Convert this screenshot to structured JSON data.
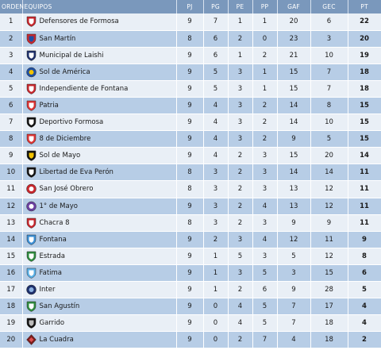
{
  "headers": {
    "ord": "ORDEN",
    "team": "EQUIPOS",
    "pj": "PJ",
    "pg": "PG",
    "pe": "PE",
    "pp": "PP",
    "gaf": "GAF",
    "gec": "GEC",
    "pt": "PT"
  },
  "rows": [
    {
      "pos": "1",
      "team": "Defensores de Formosa",
      "pj": "9",
      "pg": "7",
      "pe": "1",
      "pp": "1",
      "gaf": "20",
      "gec": "6",
      "pt": "22",
      "crest": "shield-red-icon"
    },
    {
      "pos": "2",
      "team": "San Martín",
      "pj": "8",
      "pg": "6",
      "pe": "2",
      "pp": "0",
      "gaf": "23",
      "gec": "3",
      "pt": "20",
      "crest": "shield-redblue-icon"
    },
    {
      "pos": "3",
      "team": "Municipal de Laishi",
      "pj": "9",
      "pg": "6",
      "pe": "1",
      "pp": "2",
      "gaf": "21",
      "gec": "10",
      "pt": "19",
      "crest": "shield-navy-icon"
    },
    {
      "pos": "4",
      "team": "Sol de América",
      "pj": "9",
      "pg": "5",
      "pe": "3",
      "pp": "1",
      "gaf": "15",
      "gec": "7",
      "pt": "18",
      "crest": "circle-blueyellow-icon"
    },
    {
      "pos": "5",
      "team": "Independiente de Fontana",
      "pj": "9",
      "pg": "5",
      "pe": "3",
      "pp": "1",
      "gaf": "15",
      "gec": "7",
      "pt": "18",
      "crest": "shield-red-icon"
    },
    {
      "pos": "6",
      "team": "Patria",
      "pj": "9",
      "pg": "4",
      "pe": "3",
      "pp": "2",
      "gaf": "14",
      "gec": "8",
      "pt": "15",
      "crest": "shield-redwhite-icon"
    },
    {
      "pos": "7",
      "team": "Deportivo Formosa",
      "pj": "9",
      "pg": "4",
      "pe": "3",
      "pp": "2",
      "gaf": "14",
      "gec": "10",
      "pt": "15",
      "crest": "shield-blackwhite-icon"
    },
    {
      "pos": "8",
      "team": "8 de Diciembre",
      "pj": "9",
      "pg": "4",
      "pe": "3",
      "pp": "2",
      "gaf": "9",
      "gec": "5",
      "pt": "15",
      "crest": "shield-redwhite-icon"
    },
    {
      "pos": "9",
      "team": "Sol de Mayo",
      "pj": "9",
      "pg": "4",
      "pe": "2",
      "pp": "3",
      "gaf": "15",
      "gec": "20",
      "pt": "14",
      "crest": "shield-blackyellow-icon"
    },
    {
      "pos": "10",
      "team": "Libertad de Eva Perón",
      "pj": "8",
      "pg": "3",
      "pe": "2",
      "pp": "3",
      "gaf": "14",
      "gec": "14",
      "pt": "11",
      "crest": "shield-blackwhite-icon"
    },
    {
      "pos": "11",
      "team": "San José Obrero",
      "pj": "8",
      "pg": "3",
      "pe": "2",
      "pp": "3",
      "gaf": "13",
      "gec": "12",
      "pt": "11",
      "crest": "circle-redwhite-icon"
    },
    {
      "pos": "12",
      "team": "1° de Mayo",
      "pj": "9",
      "pg": "3",
      "pe": "2",
      "pp": "4",
      "gaf": "13",
      "gec": "12",
      "pt": "11",
      "crest": "circle-purple-icon"
    },
    {
      "pos": "13",
      "team": "Chacra 8",
      "pj": "8",
      "pg": "3",
      "pe": "2",
      "pp": "3",
      "gaf": "9",
      "gec": "9",
      "pt": "11",
      "crest": "shield-red-icon"
    },
    {
      "pos": "14",
      "team": "Fontana",
      "pj": "9",
      "pg": "2",
      "pe": "3",
      "pp": "4",
      "gaf": "12",
      "gec": "11",
      "pt": "9",
      "crest": "shield-lightblue-icon"
    },
    {
      "pos": "15",
      "team": "Estrada",
      "pj": "9",
      "pg": "1",
      "pe": "5",
      "pp": "3",
      "gaf": "5",
      "gec": "12",
      "pt": "8",
      "crest": "shield-green-icon"
    },
    {
      "pos": "16",
      "team": "Fatima",
      "pj": "9",
      "pg": "1",
      "pe": "3",
      "pp": "5",
      "gaf": "3",
      "gec": "15",
      "pt": "6",
      "crest": "shield-skyblue-icon"
    },
    {
      "pos": "17",
      "team": "Inter",
      "pj": "9",
      "pg": "1",
      "pe": "2",
      "pp": "6",
      "gaf": "9",
      "gec": "28",
      "pt": "5",
      "crest": "circle-navy-icon"
    },
    {
      "pos": "18",
      "team": "San Agustín",
      "pj": "9",
      "pg": "0",
      "pe": "4",
      "pp": "5",
      "gaf": "7",
      "gec": "17",
      "pt": "4",
      "crest": "shield-green-icon"
    },
    {
      "pos": "19",
      "team": "Garrido",
      "pj": "9",
      "pg": "0",
      "pe": "4",
      "pp": "5",
      "gaf": "7",
      "gec": "18",
      "pt": "4",
      "crest": "shield-black-icon"
    },
    {
      "pos": "20",
      "team": "La Cuadra",
      "pj": "9",
      "pg": "0",
      "pe": "2",
      "pp": "7",
      "gaf": "4",
      "gec": "18",
      "pt": "2",
      "crest": "diamond-darkred-icon"
    }
  ],
  "crest_colors": {
    "shield-red-icon": [
      "#c8262c",
      "#ffffff"
    ],
    "shield-redblue-icon": [
      "#c8262c",
      "#1f4fa3"
    ],
    "shield-navy-icon": [
      "#1d2f6b",
      "#ffffff"
    ],
    "circle-blueyellow-icon": [
      "#1f4fa3",
      "#f2c200"
    ],
    "shield-redwhite-icon": [
      "#d33",
      "#ffffff"
    ],
    "shield-blackwhite-icon": [
      "#111111",
      "#ffffff"
    ],
    "shield-blackyellow-icon": [
      "#111111",
      "#f2c200"
    ],
    "circle-redwhite-icon": [
      "#c8262c",
      "#ffffff"
    ],
    "circle-purple-icon": [
      "#6a3fa0",
      "#ffffff"
    ],
    "shield-lightblue-icon": [
      "#3a8fd6",
      "#ffffff"
    ],
    "shield-green-icon": [
      "#2e8b3e",
      "#ffffff"
    ],
    "shield-skyblue-icon": [
      "#58b0e8",
      "#ffffff"
    ],
    "circle-navy-icon": [
      "#1d2f6b",
      "#8ab0e0"
    ],
    "shield-black-icon": [
      "#111111",
      "#bbbbbb"
    ],
    "diamond-darkred-icon": [
      "#7a1c1c",
      "#e05050"
    ]
  }
}
